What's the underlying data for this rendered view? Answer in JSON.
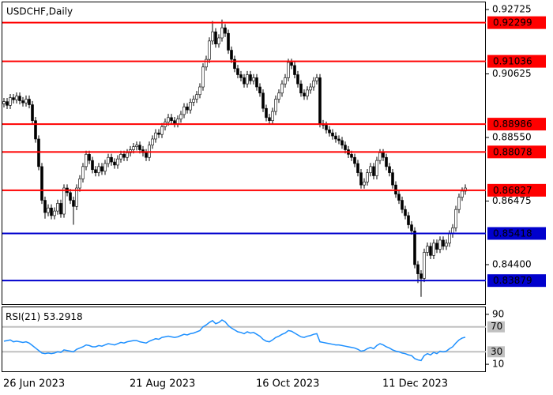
{
  "chart_data": {
    "type": "candlestick",
    "title": "USDCHF,Daily",
    "categories": [
      "26 Jun 2023",
      null,
      null,
      null,
      null,
      null,
      null,
      null,
      null,
      null,
      null,
      null,
      null,
      null,
      null,
      null,
      null,
      null,
      null,
      null,
      null,
      null,
      null,
      null,
      null,
      null,
      null,
      null,
      null,
      null,
      null,
      null,
      null,
      null,
      null,
      null,
      null,
      null,
      null,
      null,
      "21 Aug 2023",
      null,
      null,
      null,
      null,
      null,
      null,
      null,
      null,
      null,
      null,
      null,
      null,
      null,
      null,
      null,
      null,
      null,
      null,
      null,
      null,
      null,
      null,
      null,
      null,
      null,
      null,
      null,
      null,
      null,
      null,
      null,
      null,
      null,
      null,
      null,
      null,
      null,
      null,
      null,
      "16 Oct 2023",
      null,
      null,
      null,
      null,
      null,
      null,
      null,
      null,
      null,
      null,
      null,
      null,
      null,
      null,
      null,
      null,
      null,
      null,
      null,
      null,
      null,
      null,
      null,
      null,
      null,
      null,
      null,
      null,
      null,
      null,
      null,
      null,
      null,
      null,
      null,
      null,
      null,
      null,
      null,
      "11 Dec 2023",
      null,
      null,
      null,
      null,
      null,
      null,
      null,
      null,
      null,
      null,
      null,
      null,
      null,
      null,
      null,
      null,
      null,
      null,
      null,
      null,
      null,
      null,
      null,
      null,
      null,
      null
    ],
    "open": [
      0.8965,
      0.8972,
      0.896,
      0.8985,
      0.8978,
      0.899,
      0.8975,
      0.8968,
      0.898,
      0.8962,
      0.891,
      0.885,
      0.876,
      0.865,
      0.861,
      0.8625,
      0.86,
      0.8615,
      0.864,
      0.8605,
      0.869,
      0.8675,
      0.865,
      0.863,
      0.869,
      0.872,
      0.876,
      0.88,
      0.878,
      0.875,
      0.874,
      0.876,
      0.8745,
      0.877,
      0.879,
      0.8775,
      0.8765,
      0.8785,
      0.88,
      0.879,
      0.8805,
      0.8815,
      0.8825,
      0.883,
      0.8815,
      0.8805,
      0.879,
      0.883,
      0.885,
      0.887,
      0.8865,
      0.889,
      0.8905,
      0.892,
      0.891,
      0.89,
      0.8915,
      0.893,
      0.8955,
      0.8945,
      0.897,
      0.898,
      0.8995,
      0.902,
      0.9085,
      0.911,
      0.917,
      0.92,
      0.916,
      0.918,
      0.9213,
      0.9195,
      0.914,
      0.911,
      0.908,
      0.906,
      0.905,
      0.903,
      0.906,
      0.904,
      0.905,
      0.902,
      0.9,
      0.895,
      0.892,
      0.891,
      0.894,
      0.898,
      0.9,
      0.903,
      0.905,
      0.91,
      0.909,
      0.906,
      0.903,
      0.9,
      0.899,
      0.901,
      0.902,
      0.904,
      0.905,
      0.89,
      0.8895,
      0.888,
      0.887,
      0.886,
      0.885,
      0.8845,
      0.883,
      0.8815,
      0.88,
      0.879,
      0.877,
      0.874,
      0.87,
      0.871,
      0.874,
      0.876,
      0.873,
      0.878,
      0.8805,
      0.879,
      0.876,
      0.874,
      0.87,
      0.867,
      0.865,
      0.862,
      0.86,
      0.857,
      0.855,
      0.844,
      0.841,
      0.8395,
      0.848,
      0.85,
      0.847,
      0.851,
      0.849,
      0.852,
      0.85,
      0.851,
      0.854,
      0.856,
      0.862,
      0.866,
      0.868
    ],
    "high": [
      0.8984,
      0.8984,
      0.8997,
      0.8997,
      0.9002,
      0.9002,
      0.8987,
      0.8992,
      0.8992,
      0.8974,
      0.8922,
      0.8862,
      0.8772,
      0.8662,
      0.8637,
      0.8637,
      0.8627,
      0.8652,
      0.8652,
      0.8702,
      0.8702,
      0.8687,
      0.8662,
      0.8702,
      0.8732,
      0.8772,
      0.8812,
      0.8812,
      0.8792,
      0.8762,
      0.8772,
      0.8772,
      0.8782,
      0.8802,
      0.8802,
      0.8787,
      0.8797,
      0.8812,
      0.8812,
      0.8817,
      0.8827,
      0.8837,
      0.8842,
      0.8842,
      0.8827,
      0.8817,
      0.8842,
      0.8862,
      0.8882,
      0.8882,
      0.8902,
      0.8917,
      0.8932,
      0.8932,
      0.8922,
      0.8927,
      0.8942,
      0.8967,
      0.8967,
      0.8982,
      0.8992,
      0.9007,
      0.9032,
      0.9097,
      0.9122,
      0.9182,
      0.9235,
      0.9212,
      0.9192,
      0.924,
      0.9225,
      0.9207,
      0.9152,
      0.9122,
      0.9092,
      0.9072,
      0.9062,
      0.9072,
      0.9072,
      0.9062,
      0.9062,
      0.9032,
      0.9012,
      0.8962,
      0.8932,
      0.8952,
      0.8992,
      0.9012,
      0.9042,
      0.9062,
      0.9112,
      0.9112,
      0.9102,
      0.9072,
      0.9042,
      0.9012,
      0.9022,
      0.9032,
      0.9052,
      0.9062,
      0.9062,
      0.8912,
      0.8907,
      0.8892,
      0.8882,
      0.8872,
      0.8862,
      0.8857,
      0.8842,
      0.8827,
      0.8812,
      0.8802,
      0.8782,
      0.8752,
      0.8722,
      0.8752,
      0.8772,
      0.8772,
      0.8792,
      0.8817,
      0.8817,
      0.8802,
      0.8772,
      0.8752,
      0.8712,
      0.8682,
      0.8662,
      0.8632,
      0.8612,
      0.8582,
      0.8562,
      0.8452,
      0.8422,
      0.8492,
      0.8512,
      0.8512,
      0.8522,
      0.8522,
      0.8532,
      0.8532,
      0.8522,
      0.8552,
      0.8572,
      0.8632,
      0.8672,
      0.8692,
      0.8702
    ],
    "low": [
      0.8953,
      0.8948,
      0.8948,
      0.8966,
      0.8966,
      0.8963,
      0.8956,
      0.8956,
      0.895,
      0.8898,
      0.8838,
      0.8748,
      0.8638,
      0.859,
      0.8598,
      0.8588,
      0.8588,
      0.8603,
      0.8593,
      0.8593,
      0.8663,
      0.8638,
      0.857,
      0.8618,
      0.8678,
      0.8708,
      0.8748,
      0.8768,
      0.8738,
      0.8728,
      0.8728,
      0.8733,
      0.8733,
      0.8758,
      0.8763,
      0.8753,
      0.8753,
      0.8773,
      0.8778,
      0.8778,
      0.8793,
      0.8803,
      0.8813,
      0.8803,
      0.8793,
      0.8778,
      0.8778,
      0.8818,
      0.8838,
      0.8853,
      0.8853,
      0.8878,
      0.8893,
      0.8898,
      0.8888,
      0.8888,
      0.8903,
      0.8918,
      0.8933,
      0.8933,
      0.8958,
      0.8968,
      0.8983,
      0.9008,
      0.9073,
      0.9098,
      0.9158,
      0.9148,
      0.9148,
      0.9168,
      0.9183,
      0.9128,
      0.9098,
      0.9068,
      0.9048,
      0.9038,
      0.9018,
      0.9018,
      0.9028,
      0.9028,
      0.9008,
      0.8988,
      0.8938,
      0.8908,
      0.8898,
      0.8898,
      0.8928,
      0.8968,
      0.8988,
      0.9018,
      0.9038,
      0.9078,
      0.9048,
      0.9018,
      0.8988,
      0.8978,
      0.8978,
      0.8998,
      0.9008,
      0.9028,
      0.8888,
      0.8883,
      0.8868,
      0.8858,
      0.8848,
      0.8838,
      0.8833,
      0.8818,
      0.8803,
      0.8788,
      0.8778,
      0.8758,
      0.8728,
      0.8688,
      0.8688,
      0.8698,
      0.8728,
      0.8718,
      0.8718,
      0.8768,
      0.8778,
      0.8748,
      0.8728,
      0.8688,
      0.8658,
      0.8638,
      0.8608,
      0.8588,
      0.8558,
      0.8538,
      0.8428,
      0.838,
      0.8335,
      0.8383,
      0.8468,
      0.8458,
      0.8458,
      0.8478,
      0.8478,
      0.8488,
      0.8488,
      0.8498,
      0.8528,
      0.8548,
      0.8608,
      0.8648,
      0.8668
    ],
    "close": [
      0.8972,
      0.896,
      0.8985,
      0.8978,
      0.899,
      0.8975,
      0.8968,
      0.898,
      0.8962,
      0.891,
      0.885,
      0.876,
      0.865,
      0.861,
      0.8625,
      0.86,
      0.8615,
      0.864,
      0.8605,
      0.869,
      0.8675,
      0.865,
      0.863,
      0.869,
      0.872,
      0.876,
      0.88,
      0.878,
      0.875,
      0.874,
      0.876,
      0.8745,
      0.877,
      0.879,
      0.8775,
      0.8765,
      0.8785,
      0.88,
      0.879,
      0.8805,
      0.8815,
      0.8825,
      0.883,
      0.8815,
      0.8805,
      0.879,
      0.883,
      0.885,
      0.887,
      0.8865,
      0.889,
      0.8905,
      0.892,
      0.891,
      0.89,
      0.8915,
      0.893,
      0.8955,
      0.8945,
      0.897,
      0.898,
      0.8995,
      0.902,
      0.9085,
      0.911,
      0.917,
      0.92,
      0.916,
      0.918,
      0.9213,
      0.9195,
      0.914,
      0.911,
      0.908,
      0.906,
      0.905,
      0.903,
      0.906,
      0.904,
      0.905,
      0.902,
      0.9,
      0.895,
      0.892,
      0.891,
      0.894,
      0.898,
      0.9,
      0.903,
      0.905,
      0.91,
      0.909,
      0.906,
      0.903,
      0.9,
      0.899,
      0.901,
      0.902,
      0.904,
      0.905,
      0.89,
      0.8895,
      0.888,
      0.887,
      0.886,
      0.885,
      0.8845,
      0.883,
      0.8815,
      0.88,
      0.879,
      0.877,
      0.874,
      0.87,
      0.871,
      0.874,
      0.876,
      0.873,
      0.878,
      0.8805,
      0.879,
      0.876,
      0.874,
      0.87,
      0.867,
      0.865,
      0.862,
      0.86,
      0.857,
      0.855,
      0.844,
      0.841,
      0.8395,
      0.848,
      0.85,
      0.847,
      0.851,
      0.849,
      0.852,
      0.85,
      0.851,
      0.854,
      0.856,
      0.862,
      0.866,
      0.868,
      0.869
    ],
    "up_color": "#ffffff",
    "down_color": "#000000",
    "wick_color": "#000000",
    "ylim": [
      0.8311,
      0.9296
    ],
    "yticks": [
      0.92725,
      0.90625,
      {
        "value": 0.8855,
        "label": "0.88550"
      },
      0.86475,
      {
        "value": 0.844,
        "label": "0.84400"
      }
    ],
    "levels": [
      {
        "value": 0.92299,
        "color": "#ff0000"
      },
      {
        "value": 0.91036,
        "color": "#ff0000"
      },
      {
        "value": 0.88986,
        "color": "#ff0000"
      },
      {
        "value": 0.88078,
        "color": "#ff0000"
      },
      {
        "value": 0.86827,
        "color": "#ff0000"
      },
      {
        "value": 0.85418,
        "color": "#0000cd"
      },
      {
        "value": 0.83879,
        "color": "#0000cd"
      }
    ],
    "indicator": {
      "type": "line",
      "name": "RSI(21)",
      "color": "#1e90ff",
      "values": [
        47,
        48,
        49,
        46,
        47,
        46,
        45,
        46,
        44,
        40,
        36,
        32,
        28,
        27,
        28,
        27,
        28,
        30,
        29,
        33,
        32,
        31,
        30,
        34,
        36,
        38,
        41,
        40,
        38,
        38,
        40,
        39,
        41,
        43,
        42,
        41,
        43,
        45,
        44,
        46,
        47,
        48,
        48,
        46,
        45,
        44,
        47,
        49,
        51,
        50,
        53,
        54,
        55,
        54,
        53,
        54,
        56,
        58,
        57,
        59,
        60,
        62,
        64,
        70,
        73,
        77,
        80,
        75,
        77,
        81,
        78,
        72,
        68,
        65,
        62,
        61,
        59,
        62,
        60,
        61,
        58,
        55,
        50,
        47,
        46,
        49,
        53,
        55,
        58,
        60,
        64,
        63,
        60,
        57,
        54,
        53,
        55,
        56,
        58,
        59,
        46,
        45,
        44,
        43,
        42,
        41,
        41,
        40,
        39,
        38,
        37,
        36,
        34,
        31,
        32,
        35,
        37,
        35,
        40,
        43,
        41,
        38,
        36,
        33,
        31,
        30,
        28,
        27,
        25,
        24,
        19,
        17,
        16,
        24,
        27,
        25,
        29,
        27,
        31,
        30,
        31,
        35,
        38,
        44,
        49,
        52,
        53.2918
      ],
      "ylim": [
        0,
        100
      ],
      "yticks": [
        10,
        90
      ],
      "levels": [
        30,
        70
      ],
      "level_color": "#c0c0c0"
    }
  }
}
